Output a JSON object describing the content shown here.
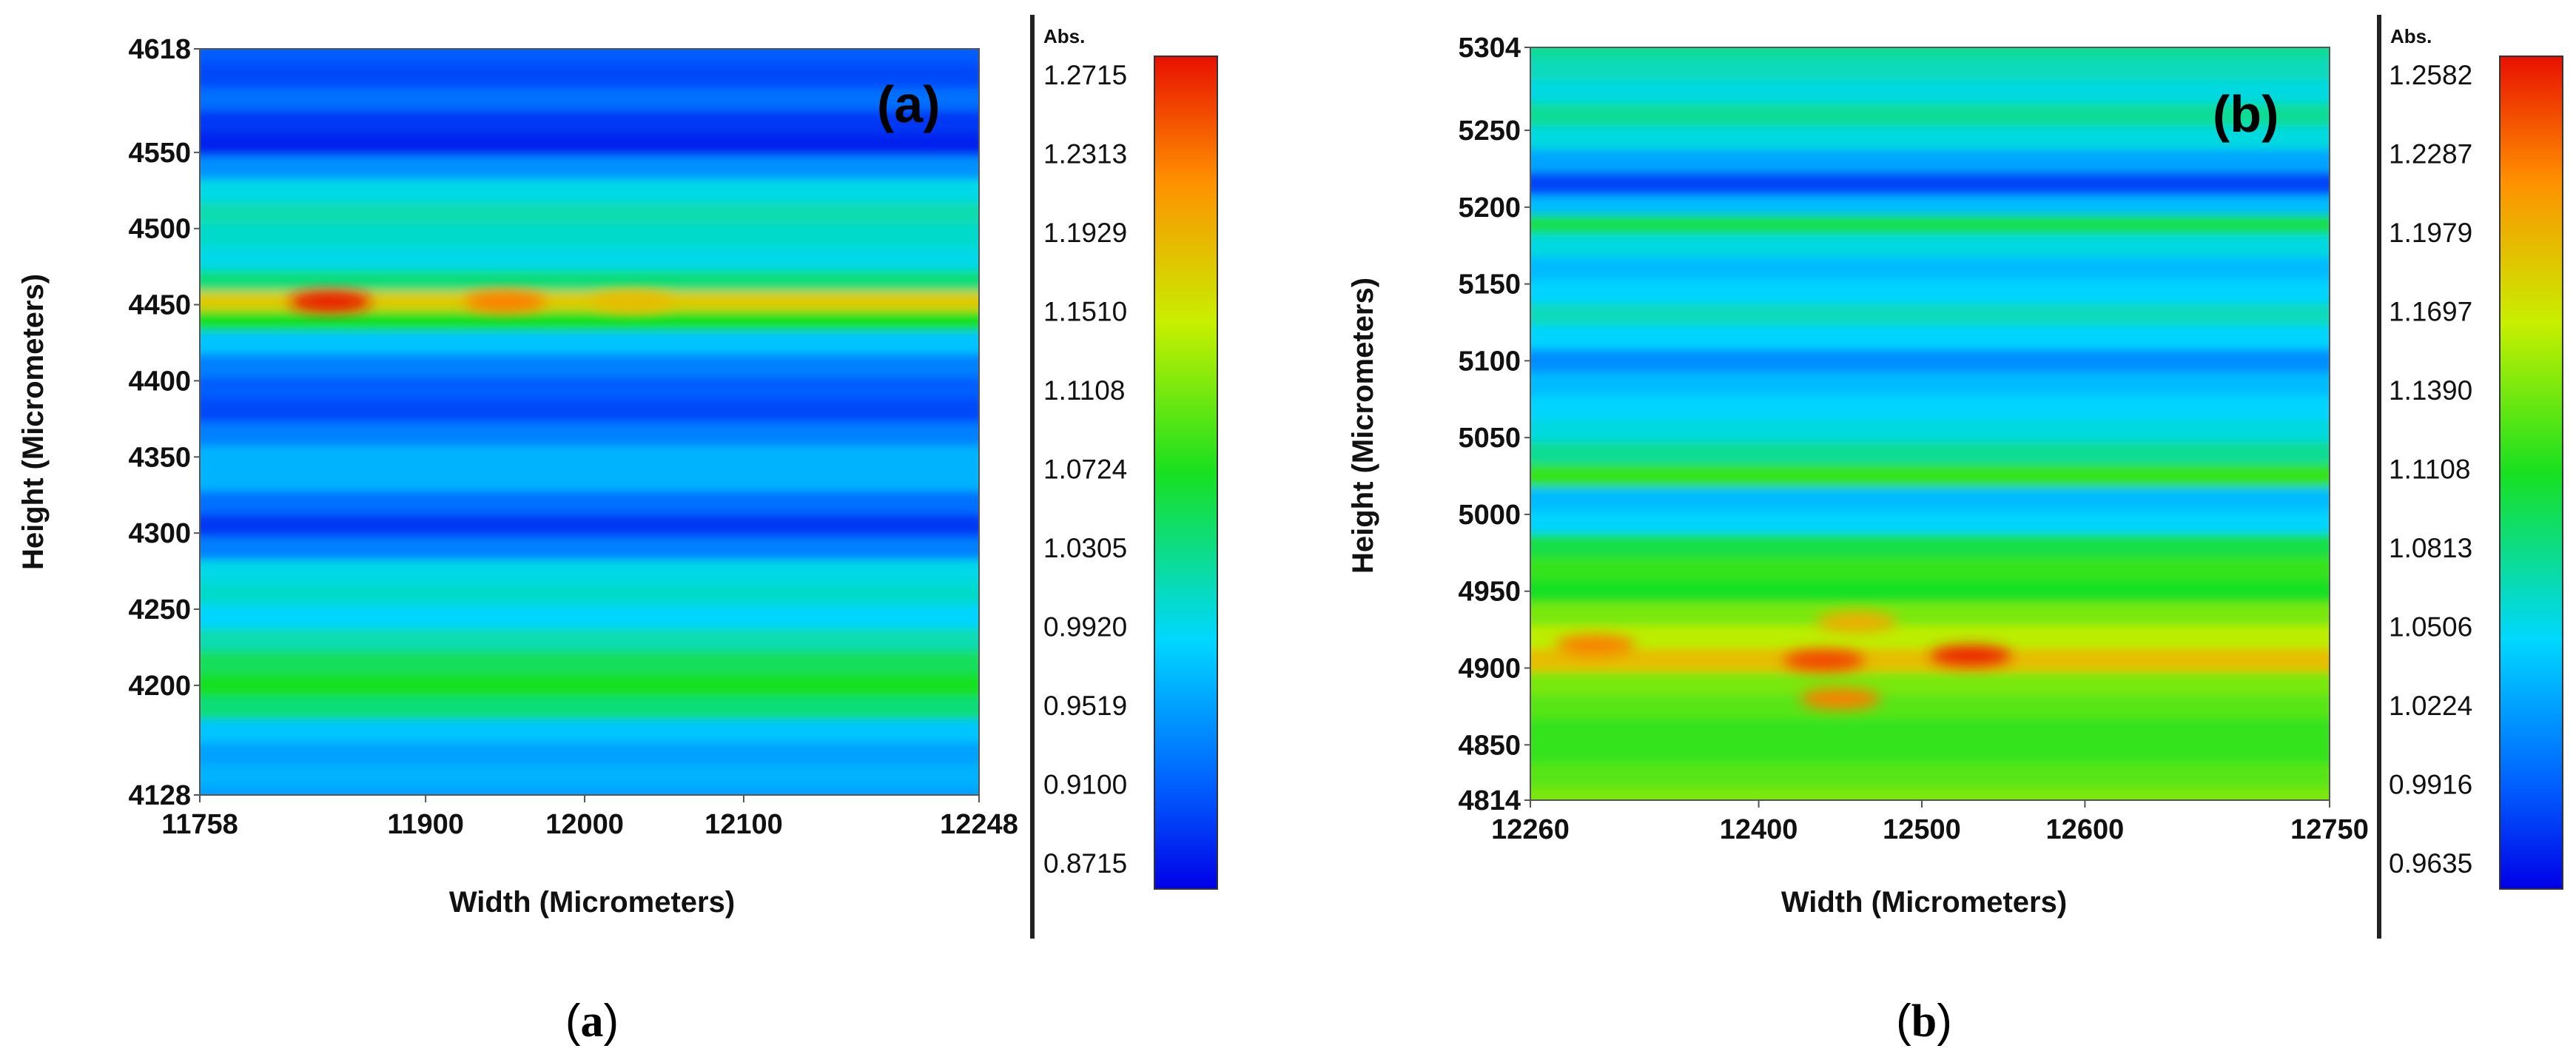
{
  "chart_data": [
    {
      "type": "heatmap",
      "panel_label": "(a)",
      "caption": {
        "open": "(",
        "letter": "a",
        "close": ")"
      },
      "xlabel": "Width (Micrometers)",
      "ylabel": "Height (Micrometers)",
      "xlim": [
        11758,
        12248
      ],
      "ylim": [
        4128,
        4618
      ],
      "x_ticks": [
        "11758",
        "11900",
        "12000",
        "12100",
        "12248"
      ],
      "y_ticks": [
        "4618",
        "4550",
        "4500",
        "4450",
        "4400",
        "4350",
        "4300",
        "4250",
        "4200",
        "4128"
      ],
      "colorbar": {
        "title": "Abs.",
        "min": 0.8715,
        "max": 1.2715,
        "ticks": [
          "1.2715",
          "1.2313",
          "1.1929",
          "1.1510",
          "1.1108",
          "1.0724",
          "1.0305",
          "0.9920",
          "0.9519",
          "0.9100",
          "0.8715"
        ]
      },
      "rows": [
        {
          "y": 4618,
          "value": 0.92
        },
        {
          "y": 4600,
          "value": 0.91
        },
        {
          "y": 4585,
          "value": 0.93
        },
        {
          "y": 4570,
          "value": 0.9
        },
        {
          "y": 4555,
          "value": 0.89
        },
        {
          "y": 4540,
          "value": 0.95
        },
        {
          "y": 4525,
          "value": 1.0
        },
        {
          "y": 4510,
          "value": 1.02
        },
        {
          "y": 4495,
          "value": 1.01
        },
        {
          "y": 4480,
          "value": 1.0
        },
        {
          "y": 4465,
          "value": 1.04
        },
        {
          "y": 4452,
          "value": 1.17
        },
        {
          "y": 4440,
          "value": 1.07
        },
        {
          "y": 4425,
          "value": 0.98
        },
        {
          "y": 4410,
          "value": 0.94
        },
        {
          "y": 4395,
          "value": 0.92
        },
        {
          "y": 4380,
          "value": 0.91
        },
        {
          "y": 4365,
          "value": 0.94
        },
        {
          "y": 4350,
          "value": 0.97
        },
        {
          "y": 4335,
          "value": 0.97
        },
        {
          "y": 4320,
          "value": 0.93
        },
        {
          "y": 4305,
          "value": 0.9
        },
        {
          "y": 4290,
          "value": 0.94
        },
        {
          "y": 4275,
          "value": 1.0
        },
        {
          "y": 4260,
          "value": 1.01
        },
        {
          "y": 4245,
          "value": 0.99
        },
        {
          "y": 4230,
          "value": 1.02
        },
        {
          "y": 4215,
          "value": 1.05
        },
        {
          "y": 4200,
          "value": 1.07
        },
        {
          "y": 4185,
          "value": 1.04
        },
        {
          "y": 4170,
          "value": 0.98
        },
        {
          "y": 4155,
          "value": 0.96
        },
        {
          "y": 4140,
          "value": 0.97
        },
        {
          "y": 4128,
          "value": 0.96
        }
      ],
      "hotspots": [
        {
          "x": 11840,
          "y": 4452,
          "value": 1.27
        },
        {
          "x": 11950,
          "y": 4452,
          "value": 1.22
        },
        {
          "x": 12030,
          "y": 4452,
          "value": 1.18
        }
      ]
    },
    {
      "type": "heatmap",
      "panel_label": "(b)",
      "caption": {
        "open": "(",
        "letter": "b",
        "close": ")"
      },
      "xlabel": "Width (Micrometers)",
      "ylabel": "Height (Micrometers)",
      "xlim": [
        12260,
        12750
      ],
      "ylim": [
        4814,
        5304
      ],
      "x_ticks": [
        "12260",
        "12400",
        "12500",
        "12600",
        "12750"
      ],
      "y_ticks": [
        "5304",
        "5250",
        "5200",
        "5150",
        "5100",
        "5050",
        "5000",
        "4950",
        "4900",
        "4850",
        "4814"
      ],
      "colorbar": {
        "title": "Abs.",
        "min": 0.9635,
        "max": 1.2582,
        "ticks": [
          "1.2582",
          "1.2287",
          "1.1979",
          "1.1697",
          "1.1390",
          "1.1108",
          "1.0813",
          "1.0506",
          "1.0224",
          "0.9916",
          "0.9635"
        ]
      },
      "rows": [
        {
          "y": 5304,
          "value": 1.08
        },
        {
          "y": 5290,
          "value": 1.07
        },
        {
          "y": 5275,
          "value": 1.06
        },
        {
          "y": 5260,
          "value": 1.08
        },
        {
          "y": 5245,
          "value": 1.06
        },
        {
          "y": 5230,
          "value": 1.03
        },
        {
          "y": 5215,
          "value": 0.99
        },
        {
          "y": 5200,
          "value": 1.04
        },
        {
          "y": 5190,
          "value": 1.1
        },
        {
          "y": 5175,
          "value": 1.06
        },
        {
          "y": 5160,
          "value": 1.04
        },
        {
          "y": 5145,
          "value": 1.05
        },
        {
          "y": 5130,
          "value": 1.07
        },
        {
          "y": 5115,
          "value": 1.05
        },
        {
          "y": 5100,
          "value": 1.02
        },
        {
          "y": 5085,
          "value": 1.04
        },
        {
          "y": 5070,
          "value": 1.05
        },
        {
          "y": 5055,
          "value": 1.06
        },
        {
          "y": 5040,
          "value": 1.08
        },
        {
          "y": 5025,
          "value": 1.12
        },
        {
          "y": 5010,
          "value": 1.04
        },
        {
          "y": 4995,
          "value": 1.05
        },
        {
          "y": 4980,
          "value": 1.1
        },
        {
          "y": 4965,
          "value": 1.12
        },
        {
          "y": 4950,
          "value": 1.11
        },
        {
          "y": 4935,
          "value": 1.14
        },
        {
          "y": 4920,
          "value": 1.16
        },
        {
          "y": 4905,
          "value": 1.19
        },
        {
          "y": 4890,
          "value": 1.14
        },
        {
          "y": 4875,
          "value": 1.13
        },
        {
          "y": 4860,
          "value": 1.12
        },
        {
          "y": 4845,
          "value": 1.12
        },
        {
          "y": 4830,
          "value": 1.13
        },
        {
          "y": 4814,
          "value": 1.14
        }
      ],
      "hotspots": [
        {
          "x": 12300,
          "y": 4915,
          "value": 1.22
        },
        {
          "x": 12440,
          "y": 4905,
          "value": 1.24
        },
        {
          "x": 12450,
          "y": 4880,
          "value": 1.22
        },
        {
          "x": 12530,
          "y": 4908,
          "value": 1.25
        },
        {
          "x": 12460,
          "y": 4930,
          "value": 1.2
        }
      ]
    }
  ]
}
